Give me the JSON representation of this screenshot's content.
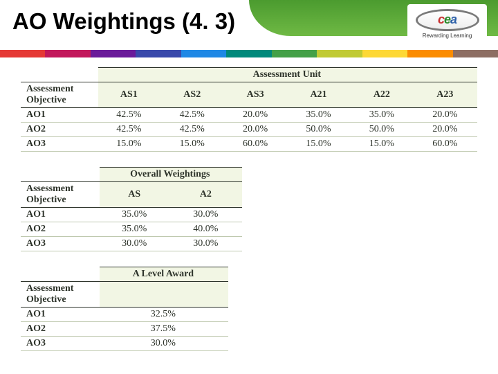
{
  "title": "AO Weightings (4. 3)",
  "logo": {
    "letters": [
      "c",
      "e",
      "a"
    ],
    "tagline": "Rewarding Learning"
  },
  "color_bar": [
    "#e53935",
    "#c2185b",
    "#6a1b9a",
    "#3949ab",
    "#1e88e5",
    "#00897b",
    "#43a047",
    "#c0ca33",
    "#fdd835",
    "#fb8c00",
    "#8d6e63"
  ],
  "tables": {
    "assessment_unit": {
      "obj_header": "Assessment Objective",
      "spanner_label": "Assessment Unit",
      "columns": [
        "AS1",
        "AS2",
        "AS3",
        "A21",
        "A22",
        "A23"
      ],
      "rows": [
        {
          "label": "AO1",
          "values": [
            "42.5%",
            "42.5%",
            "20.0%",
            "35.0%",
            "35.0%",
            "20.0%"
          ]
        },
        {
          "label": "AO2",
          "values": [
            "42.5%",
            "42.5%",
            "20.0%",
            "50.0%",
            "50.0%",
            "20.0%"
          ]
        },
        {
          "label": "AO3",
          "values": [
            "15.0%",
            "15.0%",
            "60.0%",
            "15.0%",
            "15.0%",
            "60.0%"
          ]
        }
      ]
    },
    "overall": {
      "obj_header": "Assessment Objective",
      "spanner_label": "Overall Weightings",
      "columns": [
        "AS",
        "A2"
      ],
      "rows": [
        {
          "label": "AO1",
          "values": [
            "35.0%",
            "30.0%"
          ]
        },
        {
          "label": "AO2",
          "values": [
            "35.0%",
            "40.0%"
          ]
        },
        {
          "label": "AO3",
          "values": [
            "30.0%",
            "30.0%"
          ]
        }
      ]
    },
    "award": {
      "obj_header": "Assessment Objective",
      "spanner_label": "A Level Award",
      "rows": [
        {
          "label": "AO1",
          "value": "32.5%"
        },
        {
          "label": "AO2",
          "value": "37.5%"
        },
        {
          "label": "AO3",
          "value": "30.0%"
        }
      ]
    }
  },
  "styling": {
    "page_bg": "#ffffff",
    "table_header_bg": "#f2f6e4",
    "table_border_color": "#2d332a",
    "table_row_border": "#bfc9af",
    "title_font_family": "Arial",
    "title_font_size_pt": 25,
    "body_font_family": "Georgia",
    "body_font_size_pt": 11
  }
}
